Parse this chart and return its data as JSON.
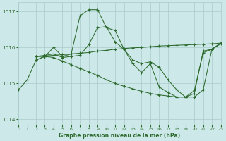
{
  "background_color": "#cce8e8",
  "grid_color": "#aacccc",
  "line_color": "#2d6a2d",
  "title": "Graphe pression niveau de la mer (hPa)",
  "xlim": [
    0,
    23
  ],
  "ylim": [
    1013.85,
    1017.25
  ],
  "yticks": [
    1014,
    1015,
    1016,
    1017
  ],
  "xticks": [
    0,
    1,
    2,
    3,
    4,
    5,
    6,
    7,
    8,
    9,
    10,
    11,
    12,
    13,
    14,
    15,
    16,
    17,
    18,
    19,
    20,
    21,
    22,
    23
  ],
  "series": [
    {
      "x": [
        0,
        1,
        2,
        3
      ],
      "y": [
        1014.82,
        1015.1,
        1015.65,
        1015.75
      ]
    },
    {
      "x": [
        2,
        3,
        4,
        5,
        6,
        7,
        8,
        9,
        10,
        11,
        12,
        13,
        14,
        15,
        16,
        17,
        18,
        19,
        20,
        21,
        22,
        23
      ],
      "y": [
        1015.65,
        1015.75,
        1016.0,
        1015.75,
        1015.82,
        1016.88,
        1017.05,
        1017.05,
        1016.55,
        1016.47,
        1015.95,
        1015.55,
        1015.3,
        1015.55,
        1014.9,
        1014.75,
        1014.62,
        1014.62,
        1014.8,
        1015.85,
        1015.95,
        1016.1
      ]
    },
    {
      "x": [
        2,
        3,
        4,
        5,
        6,
        7,
        8,
        9,
        10,
        11,
        12,
        13,
        14,
        15,
        16,
        17,
        18,
        19,
        20,
        21,
        22,
        23
      ],
      "y": [
        1015.75,
        1015.78,
        1015.82,
        1015.72,
        1015.75,
        1015.78,
        1016.08,
        1016.55,
        1016.58,
        1016.15,
        1015.95,
        1015.65,
        1015.55,
        1015.6,
        1015.45,
        1015.1,
        1014.82,
        1014.62,
        1014.62,
        1014.82,
        1015.95,
        1016.12
      ]
    },
    {
      "x": [
        2,
        3,
        4,
        5,
        6,
        7,
        8,
        9,
        10,
        11,
        12,
        13,
        14,
        15,
        16,
        17,
        18,
        19,
        20,
        21,
        22,
        23
      ],
      "y": [
        1015.75,
        1015.75,
        1015.72,
        1015.62,
        1015.52,
        1015.42,
        1015.32,
        1015.22,
        1015.1,
        1015.0,
        1014.92,
        1014.85,
        1014.78,
        1014.72,
        1014.68,
        1014.65,
        1014.62,
        1014.62,
        1014.72,
        1015.9,
        1015.95,
        1016.12
      ]
    },
    {
      "x": [
        2,
        3,
        4,
        5,
        6,
        7,
        8,
        9,
        10,
        11,
        12,
        13,
        14,
        15,
        16,
        17,
        18,
        19,
        20,
        21,
        22,
        23
      ],
      "y": [
        1015.75,
        1015.76,
        1015.78,
        1015.8,
        1015.82,
        1015.84,
        1015.86,
        1015.9,
        1015.92,
        1015.95,
        1015.97,
        1015.99,
        1016.0,
        1016.02,
        1016.04,
        1016.05,
        1016.06,
        1016.07,
        1016.08,
        1016.09,
        1016.1,
        1016.12
      ]
    }
  ]
}
